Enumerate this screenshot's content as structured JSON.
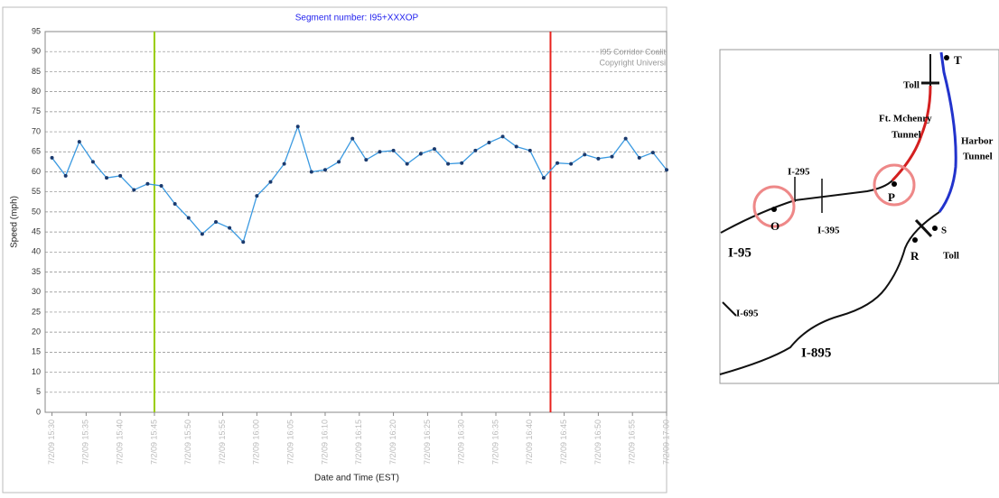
{
  "chart_data": {
    "type": "line",
    "title": "Segment number: I95+XXXOP",
    "x_label": "Date and Time (EST)",
    "y_label": "Speed (mph)",
    "x": [
      "7/2/09 15:30",
      "7/2/09 15:32",
      "7/2/09 15:34",
      "7/2/09 15:36",
      "7/2/09 15:38",
      "7/2/09 15:40",
      "7/2/09 15:42",
      "7/2/09 15:44",
      "7/2/09 15:46",
      "7/2/09 15:48",
      "7/2/09 15:50",
      "7/2/09 15:52",
      "7/2/09 15:54",
      "7/2/09 15:56",
      "7/2/09 15:58",
      "7/2/09 16:00",
      "7/2/09 16:02",
      "7/2/09 16:04",
      "7/2/09 16:06",
      "7/2/09 16:08",
      "7/2/09 16:10",
      "7/2/09 16:12",
      "7/2/09 16:14",
      "7/2/09 16:16",
      "7/2/09 16:18",
      "7/2/09 16:20",
      "7/2/09 16:22",
      "7/2/09 16:24",
      "7/2/09 16:26",
      "7/2/09 16:28",
      "7/2/09 16:30",
      "7/2/09 16:32",
      "7/2/09 16:34",
      "7/2/09 16:36",
      "7/2/09 16:38",
      "7/2/09 16:40",
      "7/2/09 16:42",
      "7/2/09 16:44",
      "7/2/09 16:46",
      "7/2/09 16:48",
      "7/2/09 16:50",
      "7/2/09 16:52",
      "7/2/09 16:54",
      "7/2/09 16:56",
      "7/2/09 16:58",
      "7/2/09 17:00"
    ],
    "series": [
      {
        "name": "Speed",
        "color": "#3b9ae1",
        "values": [
          63.5,
          59,
          67.5,
          62.5,
          58.5,
          59,
          55.5,
          57,
          56.5,
          52,
          48.5,
          44.5,
          47.5,
          46,
          42.5,
          54,
          57.5,
          62,
          71.3,
          60,
          60.5,
          62.5,
          68.3,
          63,
          65,
          65.3,
          62,
          64.5,
          65.7,
          62,
          62.2,
          65.3,
          67.3,
          68.8,
          66.3,
          65.3,
          58.5,
          62.2,
          62,
          64.3,
          63.3,
          63.8,
          68.3,
          63.5,
          64.8,
          60.5
        ]
      }
    ],
    "xlim": [
      "7/2/09 15:29",
      "7/2/09 17:00"
    ],
    "xticks": [
      "7/2/09 15:30",
      "7/2/09 15:35",
      "7/2/09 15:40",
      "7/2/09 15:45",
      "7/2/09 15:50",
      "7/2/09 15:55",
      "7/2/09 16:00",
      "7/2/09 16:05",
      "7/2/09 16:10",
      "7/2/09 16:15",
      "7/2/09 16:20",
      "7/2/09 16:25",
      "7/2/09 16:30",
      "7/2/09 16:35",
      "7/2/09 16:40",
      "7/2/09 16:45",
      "7/2/09 16:50",
      "7/2/09 16:55",
      "7/2/09 17:00"
    ],
    "ylim": [
      0,
      95
    ],
    "yticks": [
      0,
      5,
      10,
      15,
      20,
      25,
      30,
      35,
      40,
      45,
      50,
      55,
      60,
      65,
      70,
      75,
      80,
      85,
      90,
      95
    ],
    "grid": true,
    "markers": [
      {
        "x": "7/2/09 15:45",
        "color": "#99cc00"
      },
      {
        "x": "7/2/09 16:43",
        "color": "#e8211d"
      }
    ],
    "annotations": [
      "I95 Corridor Coalit",
      "Copyright Universi"
    ]
  },
  "map": {
    "labels": [
      "T",
      "Toll",
      "Ft. Mchenry",
      "Tunnel",
      "Harbor",
      "Tunnel",
      "I-295",
      "I-395",
      "O",
      "P",
      "I-95",
      "S",
      "R",
      "Toll",
      "I-695",
      "I-895"
    ]
  }
}
